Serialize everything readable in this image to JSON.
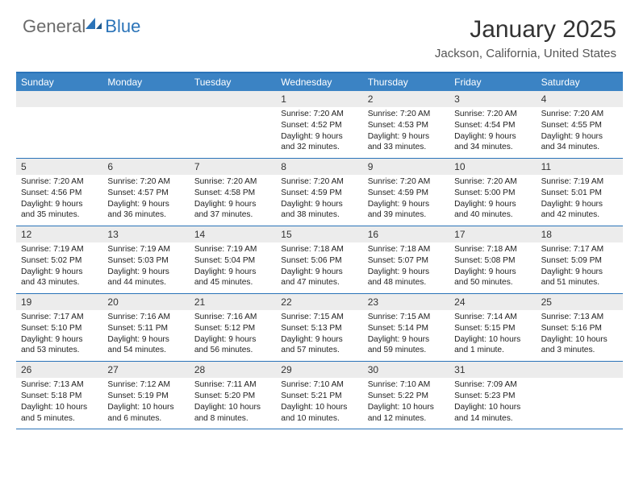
{
  "logo": {
    "text1": "General",
    "text2": "Blue"
  },
  "title": "January 2025",
  "location": "Jackson, California, United States",
  "colors": {
    "header_bg": "#3b83c4",
    "border": "#2a73b8",
    "daynum_bg": "#ececec",
    "text": "#222222",
    "logo_gray": "#6b6b6b",
    "logo_blue": "#2a73b8"
  },
  "day_names": [
    "Sunday",
    "Monday",
    "Tuesday",
    "Wednesday",
    "Thursday",
    "Friday",
    "Saturday"
  ],
  "weeks": [
    [
      {
        "n": "",
        "sr": "",
        "ss": "",
        "dl": ""
      },
      {
        "n": "",
        "sr": "",
        "ss": "",
        "dl": ""
      },
      {
        "n": "",
        "sr": "",
        "ss": "",
        "dl": ""
      },
      {
        "n": "1",
        "sr": "7:20 AM",
        "ss": "4:52 PM",
        "dl": "9 hours and 32 minutes."
      },
      {
        "n": "2",
        "sr": "7:20 AM",
        "ss": "4:53 PM",
        "dl": "9 hours and 33 minutes."
      },
      {
        "n": "3",
        "sr": "7:20 AM",
        "ss": "4:54 PM",
        "dl": "9 hours and 34 minutes."
      },
      {
        "n": "4",
        "sr": "7:20 AM",
        "ss": "4:55 PM",
        "dl": "9 hours and 34 minutes."
      }
    ],
    [
      {
        "n": "5",
        "sr": "7:20 AM",
        "ss": "4:56 PM",
        "dl": "9 hours and 35 minutes."
      },
      {
        "n": "6",
        "sr": "7:20 AM",
        "ss": "4:57 PM",
        "dl": "9 hours and 36 minutes."
      },
      {
        "n": "7",
        "sr": "7:20 AM",
        "ss": "4:58 PM",
        "dl": "9 hours and 37 minutes."
      },
      {
        "n": "8",
        "sr": "7:20 AM",
        "ss": "4:59 PM",
        "dl": "9 hours and 38 minutes."
      },
      {
        "n": "9",
        "sr": "7:20 AM",
        "ss": "4:59 PM",
        "dl": "9 hours and 39 minutes."
      },
      {
        "n": "10",
        "sr": "7:20 AM",
        "ss": "5:00 PM",
        "dl": "9 hours and 40 minutes."
      },
      {
        "n": "11",
        "sr": "7:19 AM",
        "ss": "5:01 PM",
        "dl": "9 hours and 42 minutes."
      }
    ],
    [
      {
        "n": "12",
        "sr": "7:19 AM",
        "ss": "5:02 PM",
        "dl": "9 hours and 43 minutes."
      },
      {
        "n": "13",
        "sr": "7:19 AM",
        "ss": "5:03 PM",
        "dl": "9 hours and 44 minutes."
      },
      {
        "n": "14",
        "sr": "7:19 AM",
        "ss": "5:04 PM",
        "dl": "9 hours and 45 minutes."
      },
      {
        "n": "15",
        "sr": "7:18 AM",
        "ss": "5:06 PM",
        "dl": "9 hours and 47 minutes."
      },
      {
        "n": "16",
        "sr": "7:18 AM",
        "ss": "5:07 PM",
        "dl": "9 hours and 48 minutes."
      },
      {
        "n": "17",
        "sr": "7:18 AM",
        "ss": "5:08 PM",
        "dl": "9 hours and 50 minutes."
      },
      {
        "n": "18",
        "sr": "7:17 AM",
        "ss": "5:09 PM",
        "dl": "9 hours and 51 minutes."
      }
    ],
    [
      {
        "n": "19",
        "sr": "7:17 AM",
        "ss": "5:10 PM",
        "dl": "9 hours and 53 minutes."
      },
      {
        "n": "20",
        "sr": "7:16 AM",
        "ss": "5:11 PM",
        "dl": "9 hours and 54 minutes."
      },
      {
        "n": "21",
        "sr": "7:16 AM",
        "ss": "5:12 PM",
        "dl": "9 hours and 56 minutes."
      },
      {
        "n": "22",
        "sr": "7:15 AM",
        "ss": "5:13 PM",
        "dl": "9 hours and 57 minutes."
      },
      {
        "n": "23",
        "sr": "7:15 AM",
        "ss": "5:14 PM",
        "dl": "9 hours and 59 minutes."
      },
      {
        "n": "24",
        "sr": "7:14 AM",
        "ss": "5:15 PM",
        "dl": "10 hours and 1 minute."
      },
      {
        "n": "25",
        "sr": "7:13 AM",
        "ss": "5:16 PM",
        "dl": "10 hours and 3 minutes."
      }
    ],
    [
      {
        "n": "26",
        "sr": "7:13 AM",
        "ss": "5:18 PM",
        "dl": "10 hours and 5 minutes."
      },
      {
        "n": "27",
        "sr": "7:12 AM",
        "ss": "5:19 PM",
        "dl": "10 hours and 6 minutes."
      },
      {
        "n": "28",
        "sr": "7:11 AM",
        "ss": "5:20 PM",
        "dl": "10 hours and 8 minutes."
      },
      {
        "n": "29",
        "sr": "7:10 AM",
        "ss": "5:21 PM",
        "dl": "10 hours and 10 minutes."
      },
      {
        "n": "30",
        "sr": "7:10 AM",
        "ss": "5:22 PM",
        "dl": "10 hours and 12 minutes."
      },
      {
        "n": "31",
        "sr": "7:09 AM",
        "ss": "5:23 PM",
        "dl": "10 hours and 14 minutes."
      },
      {
        "n": "",
        "sr": "",
        "ss": "",
        "dl": ""
      }
    ]
  ],
  "labels": {
    "sunrise": "Sunrise:",
    "sunset": "Sunset:",
    "daylight": "Daylight:"
  }
}
